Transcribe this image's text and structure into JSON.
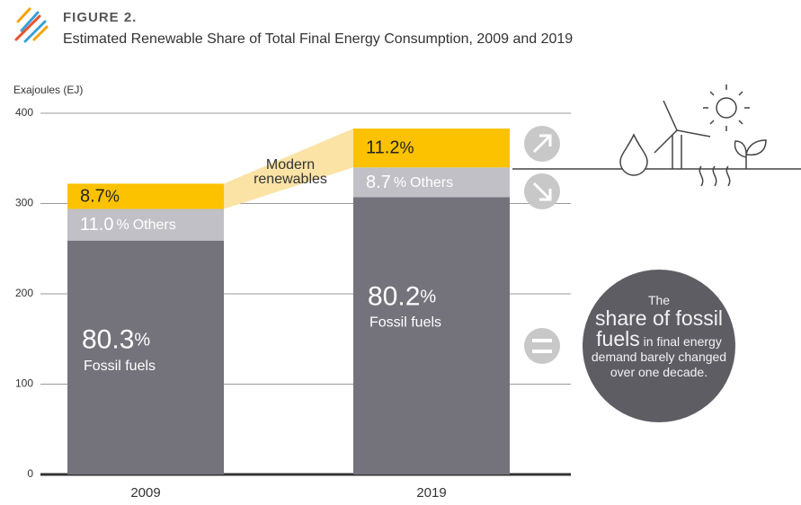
{
  "figure_label": "FIGURE 2.",
  "chart_data": {
    "type": "stacked-bar",
    "title": "Estimated Renewable Share of Total Final Energy Consumption, 2009 and 2019",
    "y_label": "Exajoules (EJ)",
    "categories": [
      "2009",
      "2019"
    ],
    "ylim": [
      0,
      400
    ],
    "yticks": [
      0,
      100,
      200,
      300,
      400
    ],
    "grid": true,
    "share_unit": "%",
    "series": [
      {
        "name": "Fossil fuels",
        "color": "#74727b",
        "values": [
          259,
          307
        ],
        "shares": [
          80.3,
          80.2
        ]
      },
      {
        "name": "Others",
        "color": "#c1c0c6",
        "values": [
          35,
          33
        ],
        "shares": [
          11.0,
          8.7
        ],
        "share_labels": [
          "11.0",
          "8.7"
        ]
      },
      {
        "name": "Modern renewables",
        "color": "#fcc200",
        "values": [
          28,
          43
        ],
        "shares": [
          8.7,
          11.2
        ]
      }
    ],
    "callout": [
      "The",
      "share of fossil fuels",
      "in",
      "final energy demand barely changed over one decade."
    ]
  }
}
